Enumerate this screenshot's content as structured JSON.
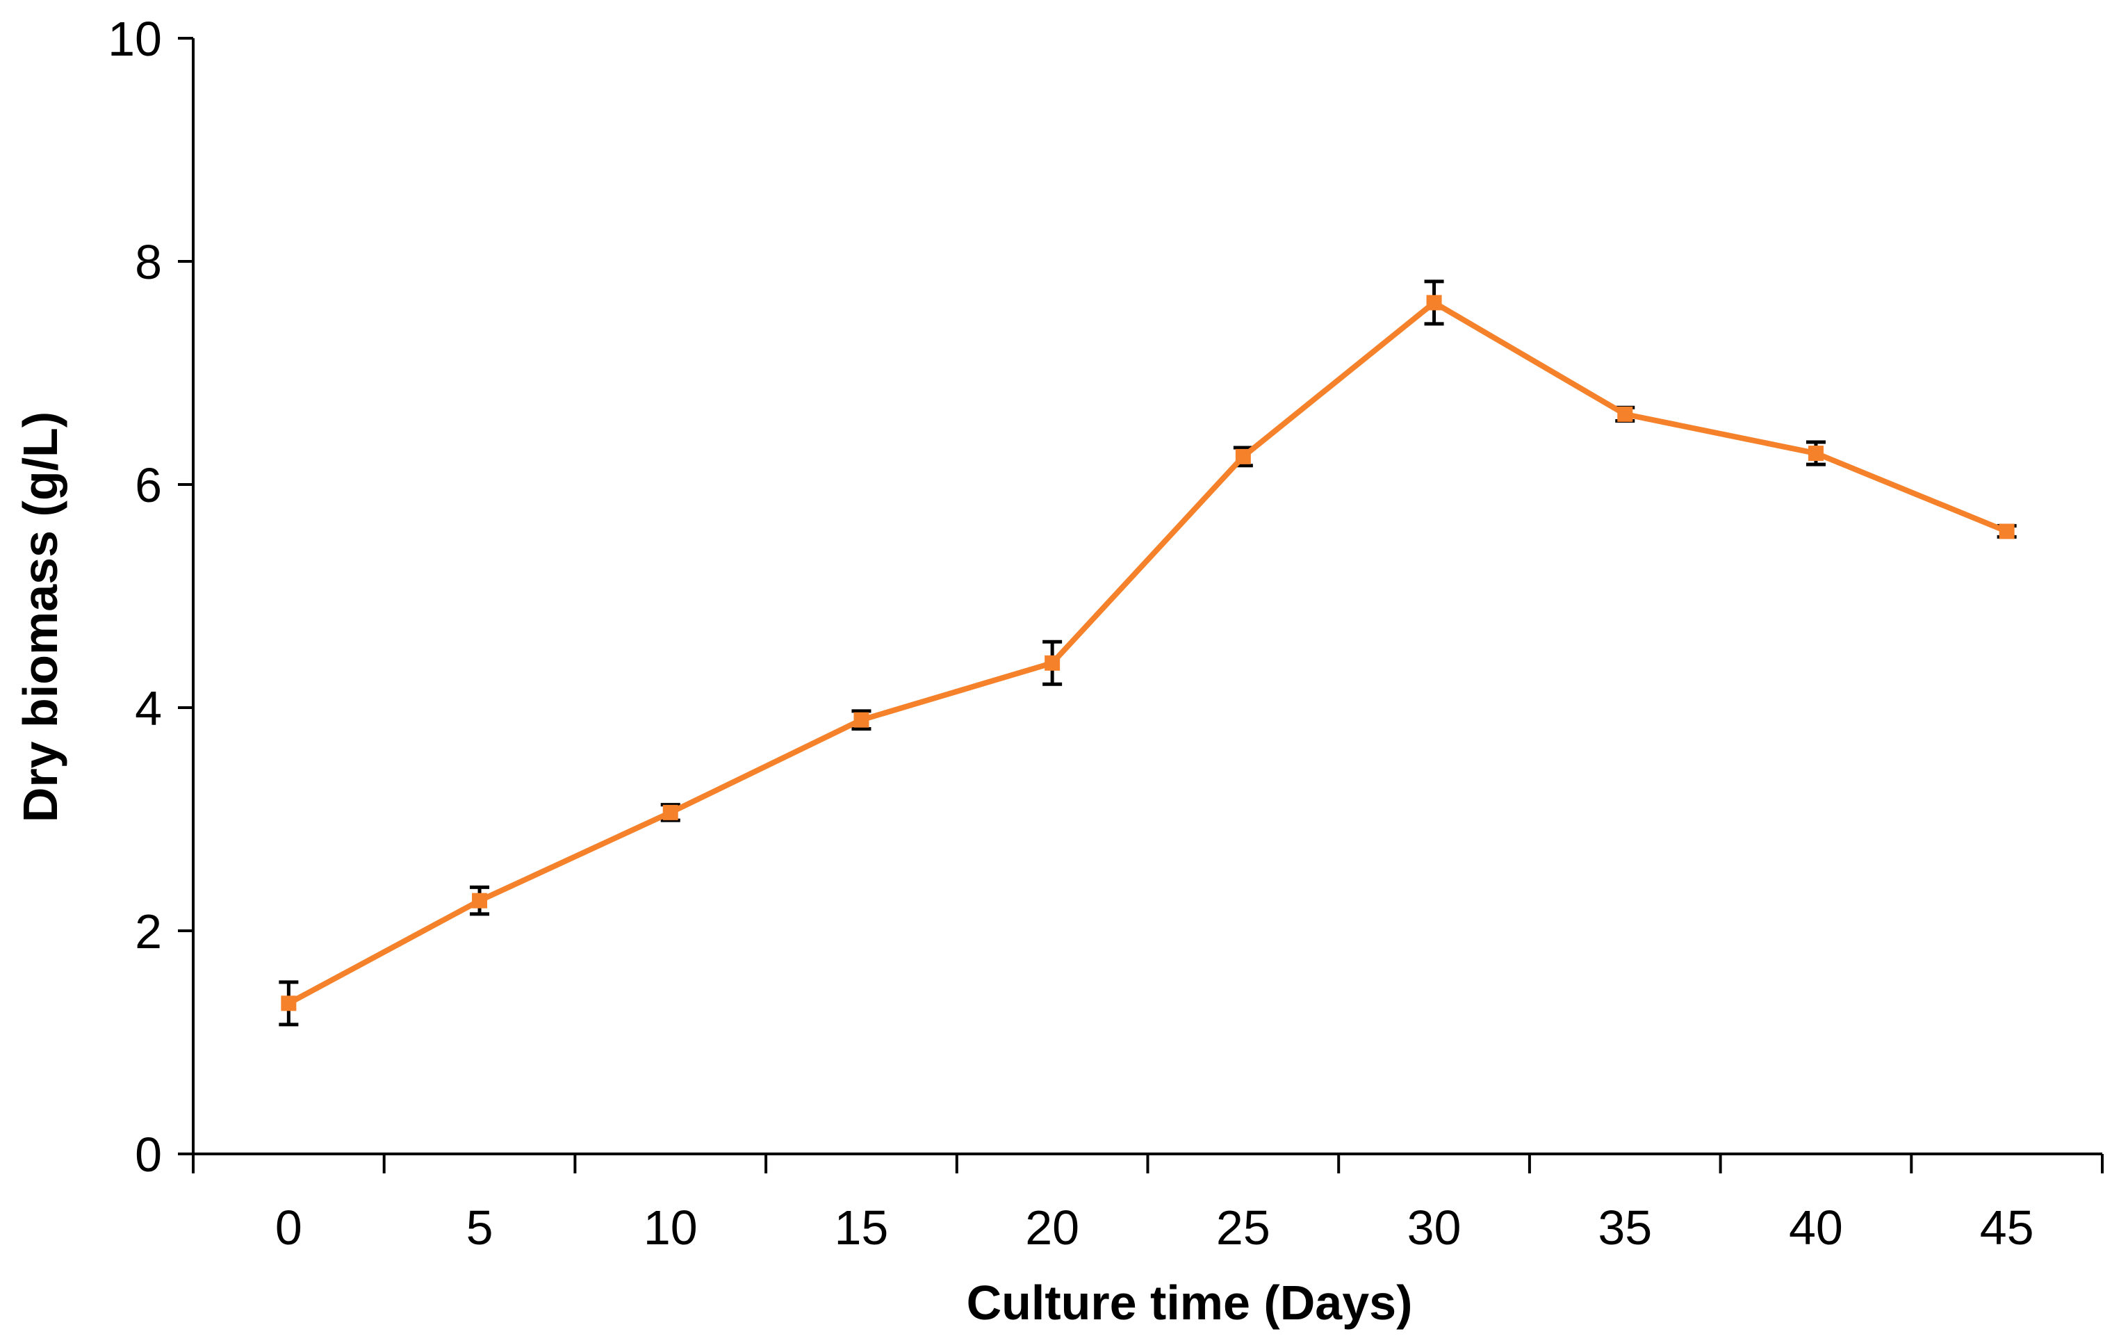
{
  "chart_data": {
    "type": "line",
    "xlabel": "Culture time (Days)",
    "ylabel": "Dry biomass (g/L)",
    "x": [
      0,
      5,
      10,
      15,
      20,
      25,
      30,
      35,
      40,
      45
    ],
    "x_tick_labels": [
      "0",
      "5",
      "10",
      "15",
      "20",
      "25",
      "30",
      "35",
      "40",
      "45"
    ],
    "y_tick_labels": [
      "0",
      "2",
      "4",
      "6",
      "8",
      "10"
    ],
    "ylim": [
      0,
      10
    ],
    "grid": false,
    "legend": "none",
    "series": [
      {
        "color": "#F5812A",
        "values": [
          1.35,
          2.27,
          3.06,
          3.89,
          4.4,
          6.25,
          7.63,
          6.63,
          6.28,
          5.58
        ],
        "error": [
          0.19,
          0.12,
          0.07,
          0.08,
          0.19,
          0.08,
          0.19,
          0.06,
          0.1,
          0.05
        ]
      }
    ]
  }
}
